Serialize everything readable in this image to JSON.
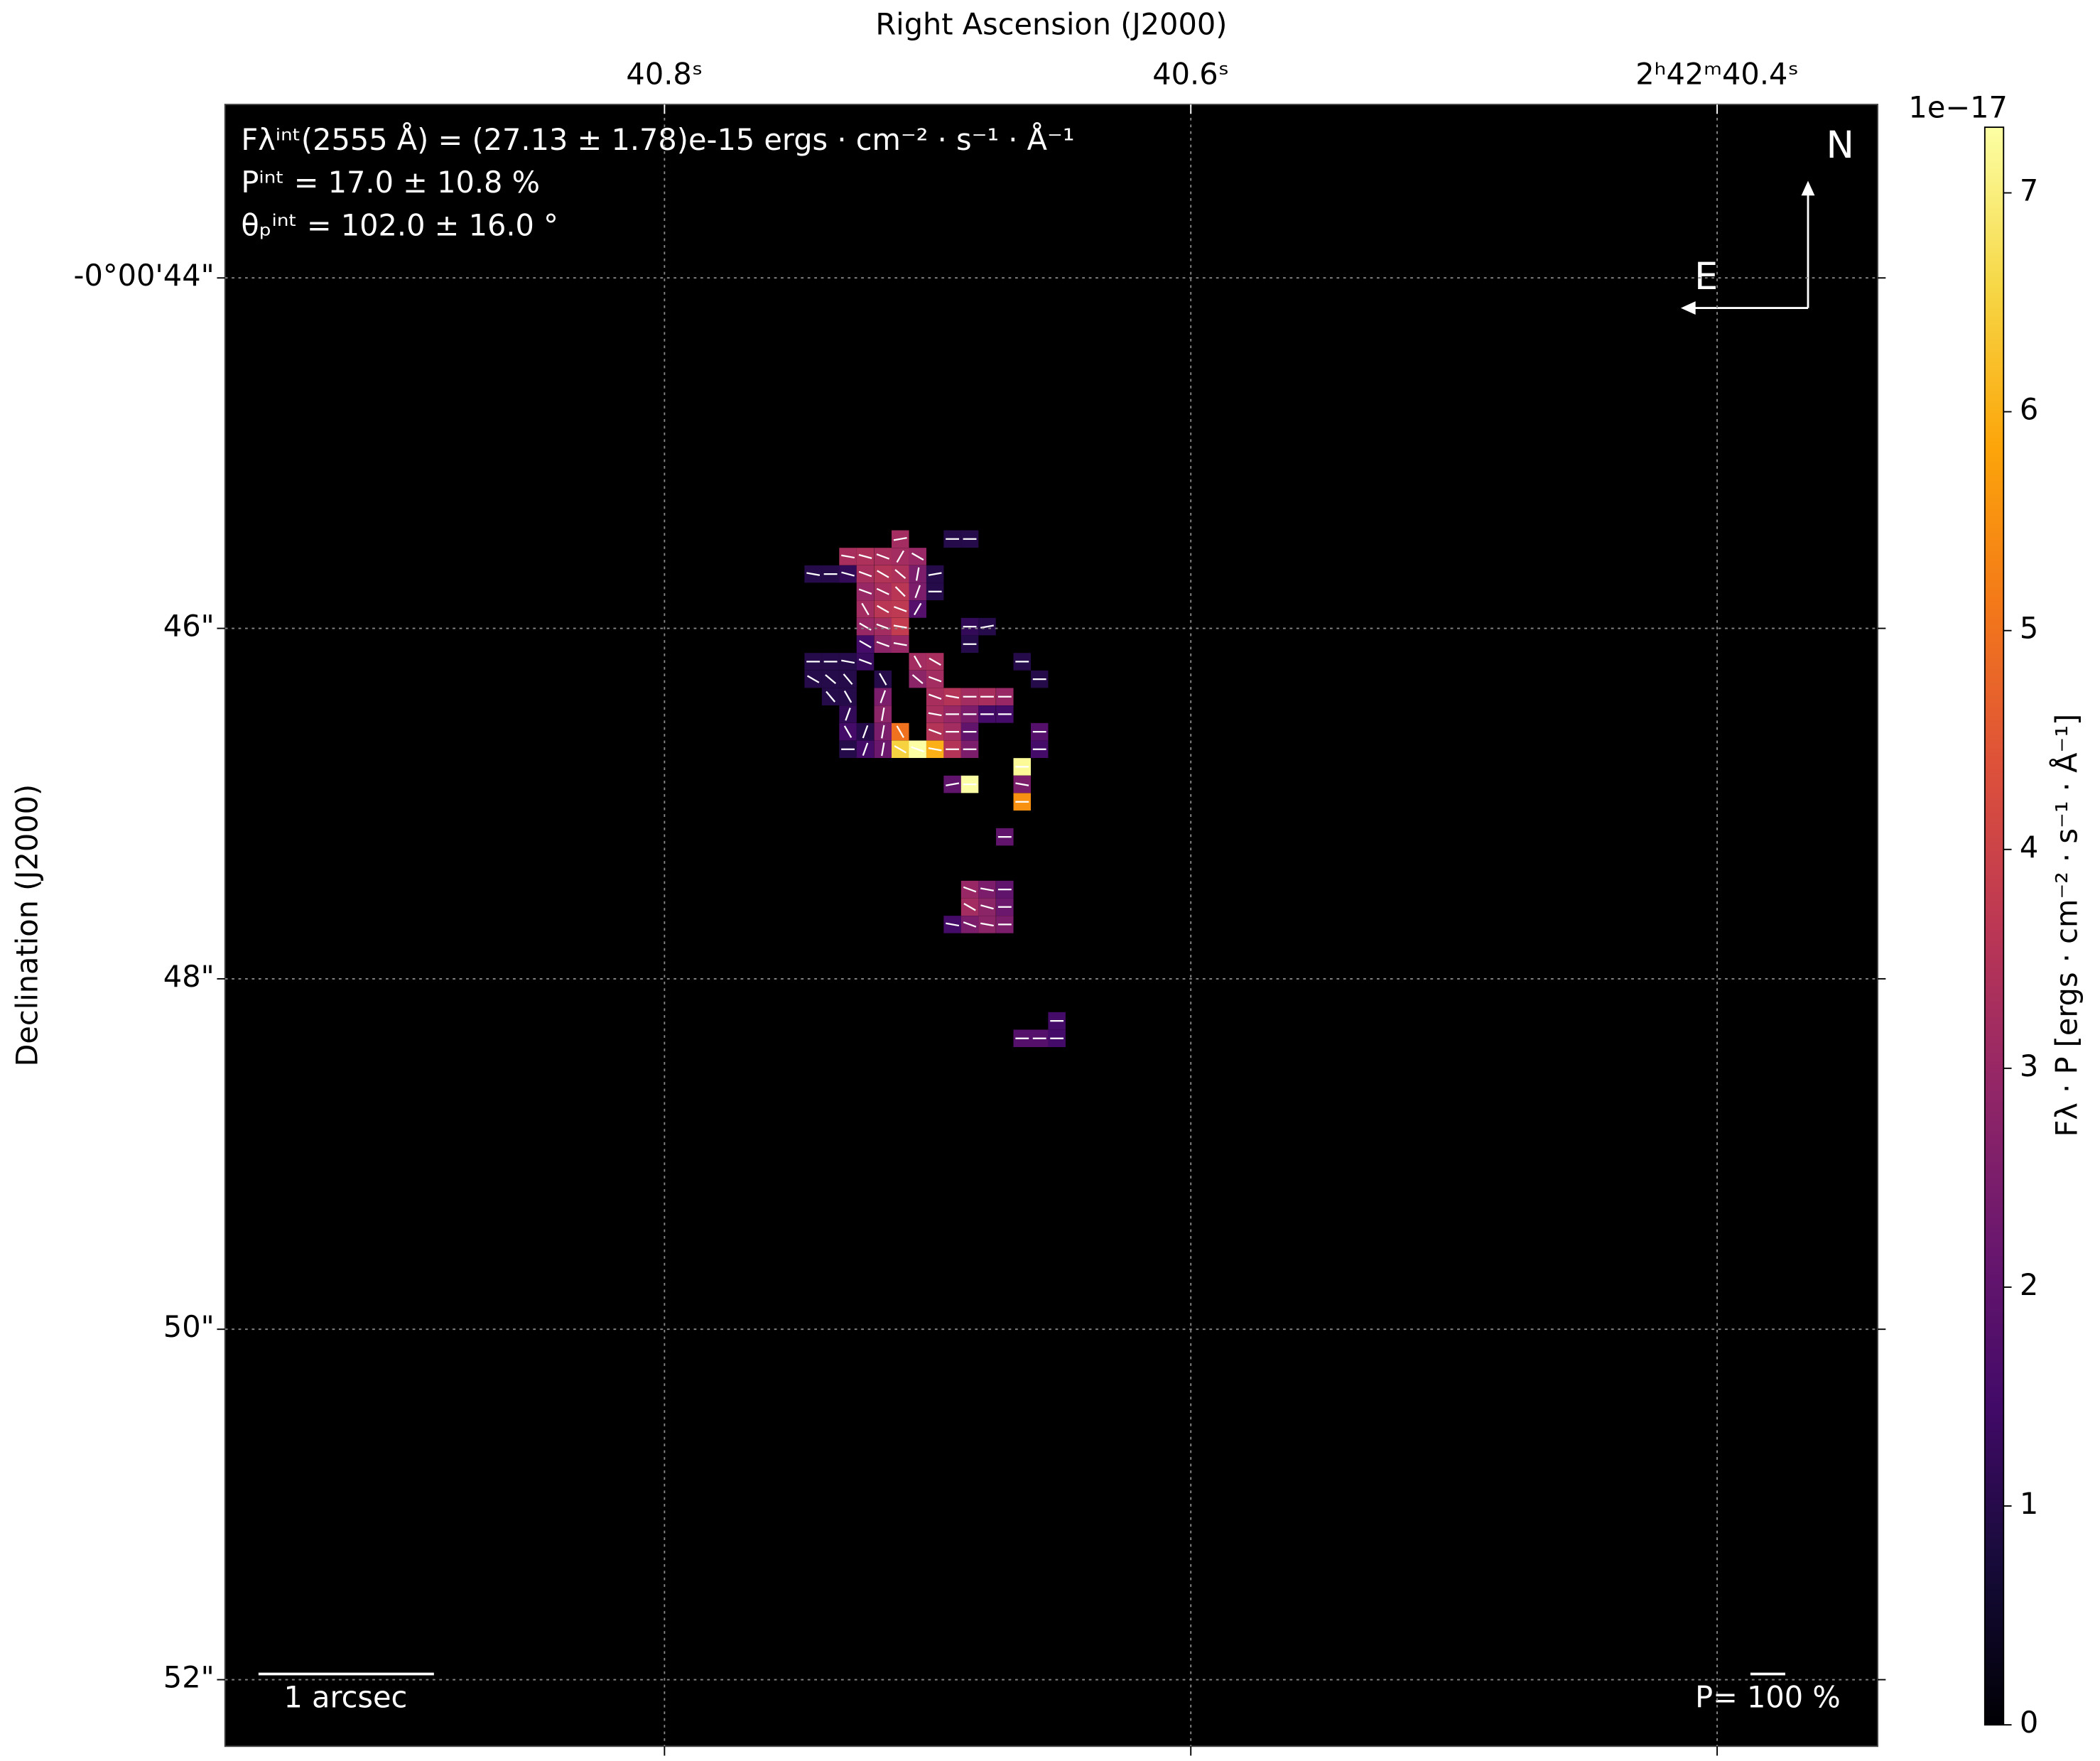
{
  "chart_data": {
    "type": "heatmap",
    "title": "Right Ascension (J2000)",
    "y_label": "Declination (J2000)",
    "colorbar_label": "Fλ · P [ergs · cm⁻² · s⁻¹ · Å⁻¹]",
    "colorbar_offset": "1e−17",
    "colormap": "inferno",
    "annotations": [
      "Fλⁱⁿᵗ(2555 Å) = (27.13 ± 1.78)e-15 ergs · cm⁻² · s⁻¹ · Å⁻¹",
      "Pⁱⁿᵗ = 17.0 ± 10.8 %",
      "θₚⁱⁿᵗ = 102.0 ± 16.0 °"
    ],
    "compass": {
      "north": "N",
      "east": "E"
    },
    "scale_bar": "1 arcsec",
    "vector_scale": "P= 100 %",
    "grid": true,
    "xlim": [
      40.967,
      40.339
    ],
    "xticks": [
      {
        "value": 40.8,
        "label": "40.8ˢ"
      },
      {
        "value": 40.6,
        "label": "40.6ˢ"
      },
      {
        "value": 40.4,
        "label": "2ʰ42ᵐ40.4ˢ"
      }
    ],
    "ylim": [
      43.01,
      52.38
    ],
    "yticks": [
      {
        "value": 44,
        "label": "-0°00'44\""
      },
      {
        "value": 46,
        "label": "46\""
      },
      {
        "value": 48,
        "label": "48\""
      },
      {
        "value": 50,
        "label": "50\""
      },
      {
        "value": 52,
        "label": "52\""
      }
    ],
    "clim": [
      0,
      7.3
    ],
    "cticks": [
      0,
      1,
      2,
      3,
      4,
      5,
      6,
      7
    ],
    "x": [
      40.7104,
      40.6906,
      40.684,
      40.7303,
      40.7237,
      40.717,
      40.7104,
      40.7038,
      40.7435,
      40.7369,
      40.7303,
      40.7237,
      40.717,
      40.7104,
      40.7038,
      40.6972,
      40.7237,
      40.717,
      40.7104,
      40.7038,
      40.6972,
      40.7237,
      40.717,
      40.7104,
      40.7038,
      40.7237,
      40.717,
      40.7104,
      40.684,
      40.6774,
      40.7237,
      40.717,
      40.7104,
      40.684,
      40.7435,
      40.7369,
      40.7303,
      40.7237,
      40.7038,
      40.6972,
      40.6641,
      40.7435,
      40.7369,
      40.7303,
      40.717,
      40.7038,
      40.6972,
      40.6575,
      40.7369,
      40.7303,
      40.717,
      40.6972,
      40.6906,
      40.684,
      40.6774,
      40.6707,
      40.7303,
      40.717,
      40.6972,
      40.6906,
      40.684,
      40.6774,
      40.6707,
      40.7303,
      40.7237,
      40.717,
      40.7104,
      40.6972,
      40.6906,
      40.684,
      40.6575,
      40.7303,
      40.7237,
      40.717,
      40.7104,
      40.7038,
      40.6972,
      40.6906,
      40.684,
      40.6575,
      40.6641,
      40.6906,
      40.684,
      40.6641,
      40.6641,
      40.6707,
      40.684,
      40.6774,
      40.6707,
      40.684,
      40.6774,
      40.6707,
      40.6906,
      40.684,
      40.6774,
      40.6707,
      40.6641,
      40.6575,
      40.6509,
      40.6509
    ],
    "y": [
      45.49,
      45.49,
      45.49,
      45.59,
      45.59,
      45.59,
      45.59,
      45.59,
      45.69,
      45.69,
      45.69,
      45.69,
      45.69,
      45.69,
      45.69,
      45.69,
      45.79,
      45.79,
      45.79,
      45.79,
      45.79,
      45.89,
      45.89,
      45.89,
      45.89,
      45.99,
      45.99,
      45.99,
      45.99,
      45.99,
      46.09,
      46.09,
      46.09,
      46.09,
      46.19,
      46.19,
      46.19,
      46.19,
      46.19,
      46.19,
      46.19,
      46.29,
      46.29,
      46.29,
      46.29,
      46.29,
      46.29,
      46.29,
      46.39,
      46.39,
      46.39,
      46.39,
      46.39,
      46.39,
      46.39,
      46.39,
      46.49,
      46.49,
      46.49,
      46.49,
      46.49,
      46.49,
      46.49,
      46.59,
      46.59,
      46.59,
      46.59,
      46.59,
      46.59,
      46.59,
      46.59,
      46.69,
      46.69,
      46.69,
      46.69,
      46.69,
      46.69,
      46.69,
      46.69,
      46.69,
      46.79,
      46.89,
      46.89,
      46.89,
      46.99,
      47.19,
      47.49,
      47.49,
      47.49,
      47.59,
      47.59,
      47.59,
      47.69,
      47.69,
      47.69,
      47.69,
      48.34,
      48.34,
      48.24,
      48.34
    ],
    "values": [
      3.2,
      1.0,
      1.0,
      3.3,
      3.4,
      3.3,
      3.2,
      3.0,
      1.0,
      1.0,
      1.2,
      3.3,
      3.5,
      3.4,
      2.5,
      1.0,
      3.0,
      3.3,
      3.6,
      2.5,
      1.0,
      3.2,
      3.6,
      3.7,
      1.8,
      3.0,
      3.2,
      3.8,
      1.2,
      1.0,
      1.5,
      2.8,
      3.0,
      1.0,
      1.0,
      1.0,
      1.0,
      1.3,
      3.2,
      3.3,
      1.0,
      1.0,
      1.0,
      1.0,
      1.0,
      2.8,
      3.2,
      1.0,
      1.0,
      1.0,
      2.5,
      3.3,
      3.5,
      3.2,
      3.3,
      3.0,
      1.2,
      2.8,
      3.3,
      3.0,
      2.5,
      1.5,
      1.5,
      1.5,
      1.0,
      2.5,
      5.0,
      3.5,
      3.2,
      2.0,
      1.8,
      1.0,
      1.5,
      2.2,
      6.5,
      7.3,
      6.0,
      3.5,
      2.5,
      1.5,
      7.2,
      2.0,
      7.3,
      2.5,
      5.5,
      2.0,
      3.0,
      2.5,
      2.0,
      3.2,
      2.8,
      2.2,
      1.5,
      2.5,
      2.8,
      2.5,
      1.8,
      1.8,
      1.5,
      1.5
    ],
    "angles": [
      10,
      0,
      0,
      -10,
      -15,
      -20,
      60,
      -30,
      -10,
      0,
      -15,
      -20,
      -30,
      -40,
      80,
      10,
      -20,
      -25,
      -45,
      70,
      0,
      -60,
      -30,
      -20,
      60,
      -30,
      -20,
      -10,
      0,
      10,
      -30,
      -20,
      -10,
      0,
      0,
      0,
      -10,
      -20,
      -60,
      -30,
      0,
      -30,
      -40,
      -50,
      -60,
      -40,
      -20,
      0,
      -50,
      -60,
      70,
      -20,
      -10,
      0,
      0,
      0,
      70,
      80,
      -10,
      0,
      0,
      0,
      0,
      -60,
      70,
      80,
      -60,
      -20,
      0,
      0,
      0,
      0,
      70,
      80,
      -30,
      -20,
      -10,
      0,
      0,
      0,
      0,
      10,
      0,
      -10,
      0,
      0,
      -20,
      -10,
      0,
      -30,
      -15,
      0,
      -10,
      -20,
      -10,
      0,
      0,
      0,
      0,
      0
    ]
  }
}
